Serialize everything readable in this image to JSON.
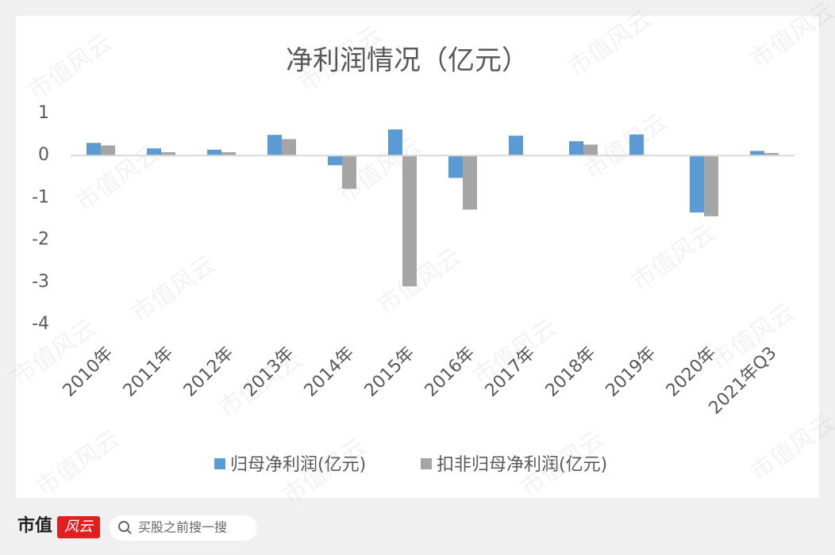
{
  "chart_data": {
    "type": "bar",
    "title": "净利润情况（亿元）",
    "categories": [
      "2010年",
      "2011年",
      "2012年",
      "2013年",
      "2014年",
      "2015年",
      "2016年",
      "2017年",
      "2018年",
      "2019年",
      "2020年",
      "2021年Q3"
    ],
    "series": [
      {
        "name": "归母净利润(亿元)",
        "color": "#5b9bd5",
        "values": [
          0.3,
          0.17,
          0.14,
          0.49,
          -0.23,
          0.62,
          -0.53,
          0.47,
          0.34,
          0.5,
          -1.35,
          0.11
        ]
      },
      {
        "name": "扣非归母净利润(亿元)",
        "color": "#a5a5a5",
        "values": [
          0.24,
          0.08,
          0.08,
          0.39,
          -0.79,
          -3.1,
          -1.28,
          null,
          0.26,
          null,
          -1.44,
          0.06
        ]
      }
    ],
    "ylim": [
      -4,
      1
    ],
    "yticks": [
      -4,
      -3,
      -2,
      -1,
      0,
      1
    ],
    "grid": false,
    "legend": "bottom"
  },
  "watermark": "市值风云",
  "footer": {
    "brand": "市值",
    "brand_stamp": "风云",
    "search_placeholder": "买股之前搜一搜"
  }
}
